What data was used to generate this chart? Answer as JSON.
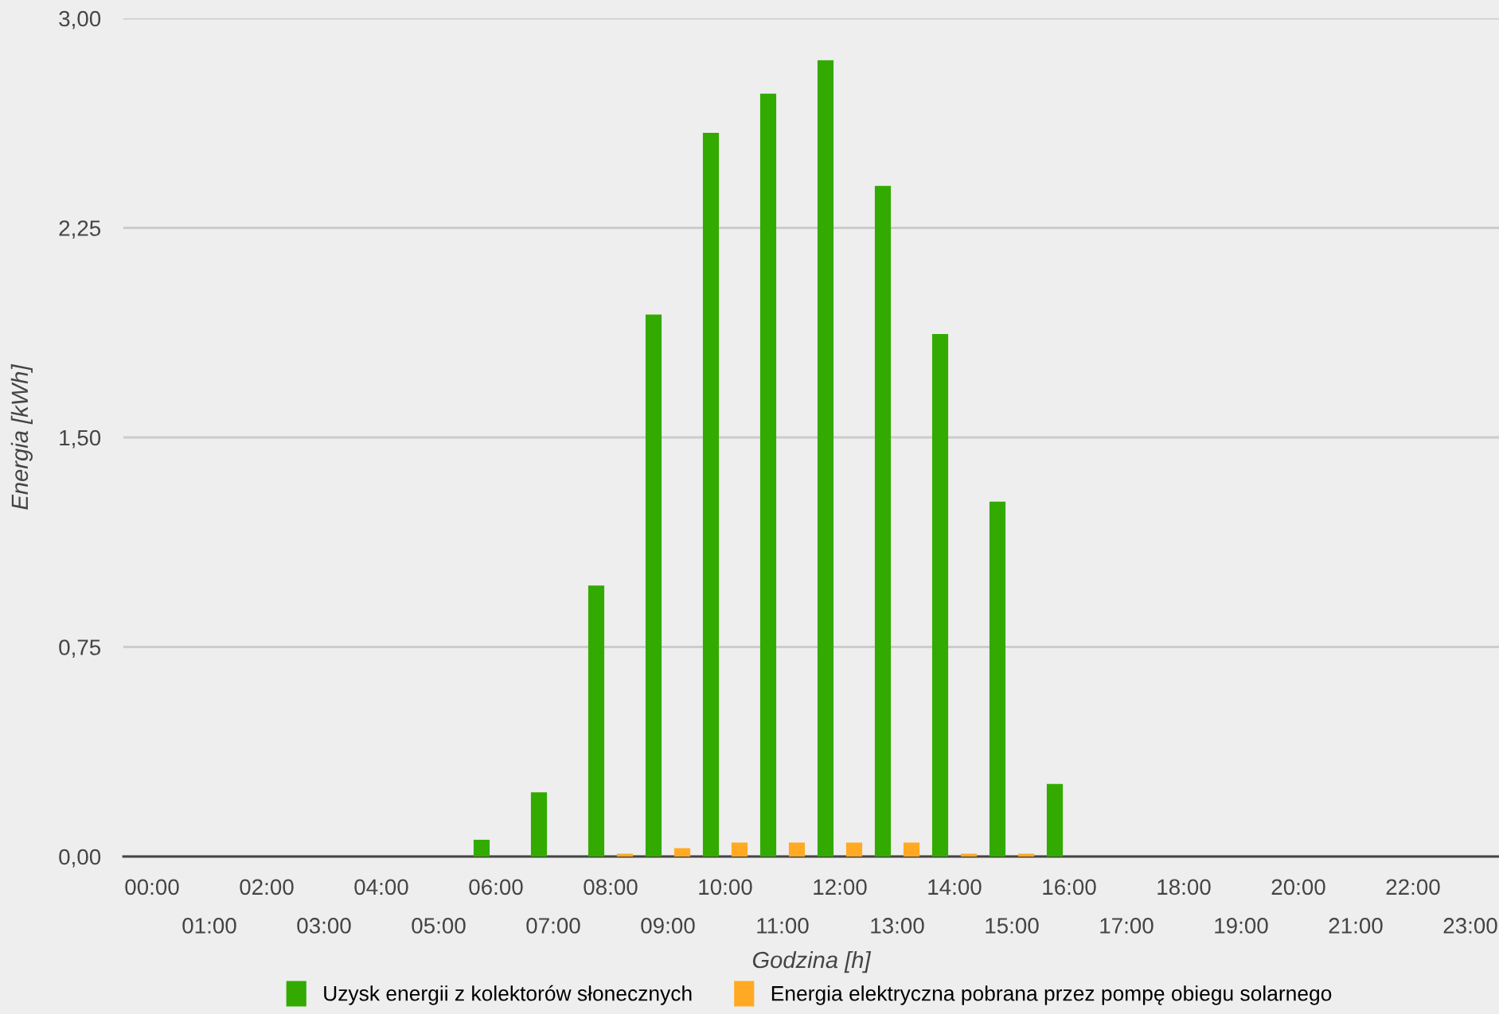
{
  "chart_data": {
    "type": "bar",
    "xlabel": "Godzina [h]",
    "ylabel": "Energia [kWh]",
    "categories": [
      "00:00",
      "01:00",
      "02:00",
      "03:00",
      "04:00",
      "05:00",
      "06:00",
      "07:00",
      "08:00",
      "09:00",
      "10:00",
      "11:00",
      "12:00",
      "13:00",
      "14:00",
      "15:00",
      "16:00",
      "17:00",
      "18:00",
      "19:00",
      "20:00",
      "21:00",
      "22:00",
      "23:00"
    ],
    "series": [
      {
        "name": "Uzysk energii z kolektorów słonecznych",
        "color": "#33aa00",
        "values": [
          0,
          0,
          0,
          0,
          0,
          0,
          0.06,
          0.23,
          0.97,
          1.94,
          2.59,
          2.73,
          2.85,
          2.4,
          1.87,
          1.27,
          0.26,
          0,
          0,
          0,
          0,
          0,
          0,
          0
        ]
      },
      {
        "name": "Energia elektryczna pobrana przez pompę obiegu solarnego",
        "color": "#ffaa22",
        "values": [
          0,
          0,
          0,
          0,
          0,
          0,
          0,
          0,
          0.01,
          0.03,
          0.05,
          0.05,
          0.05,
          0.05,
          0.01,
          0.01,
          0,
          0,
          0,
          0,
          0,
          0,
          0,
          0
        ]
      }
    ],
    "ylim": [
      0,
      3
    ],
    "yticks": [
      {
        "value": 0,
        "label": "0,00"
      },
      {
        "value": 0.75,
        "label": "0,75"
      },
      {
        "value": 1.5,
        "label": "1,50"
      },
      {
        "value": 2.25,
        "label": "2,25"
      },
      {
        "value": 3,
        "label": "3,00"
      }
    ],
    "grid": "y",
    "legend": "bottom"
  }
}
